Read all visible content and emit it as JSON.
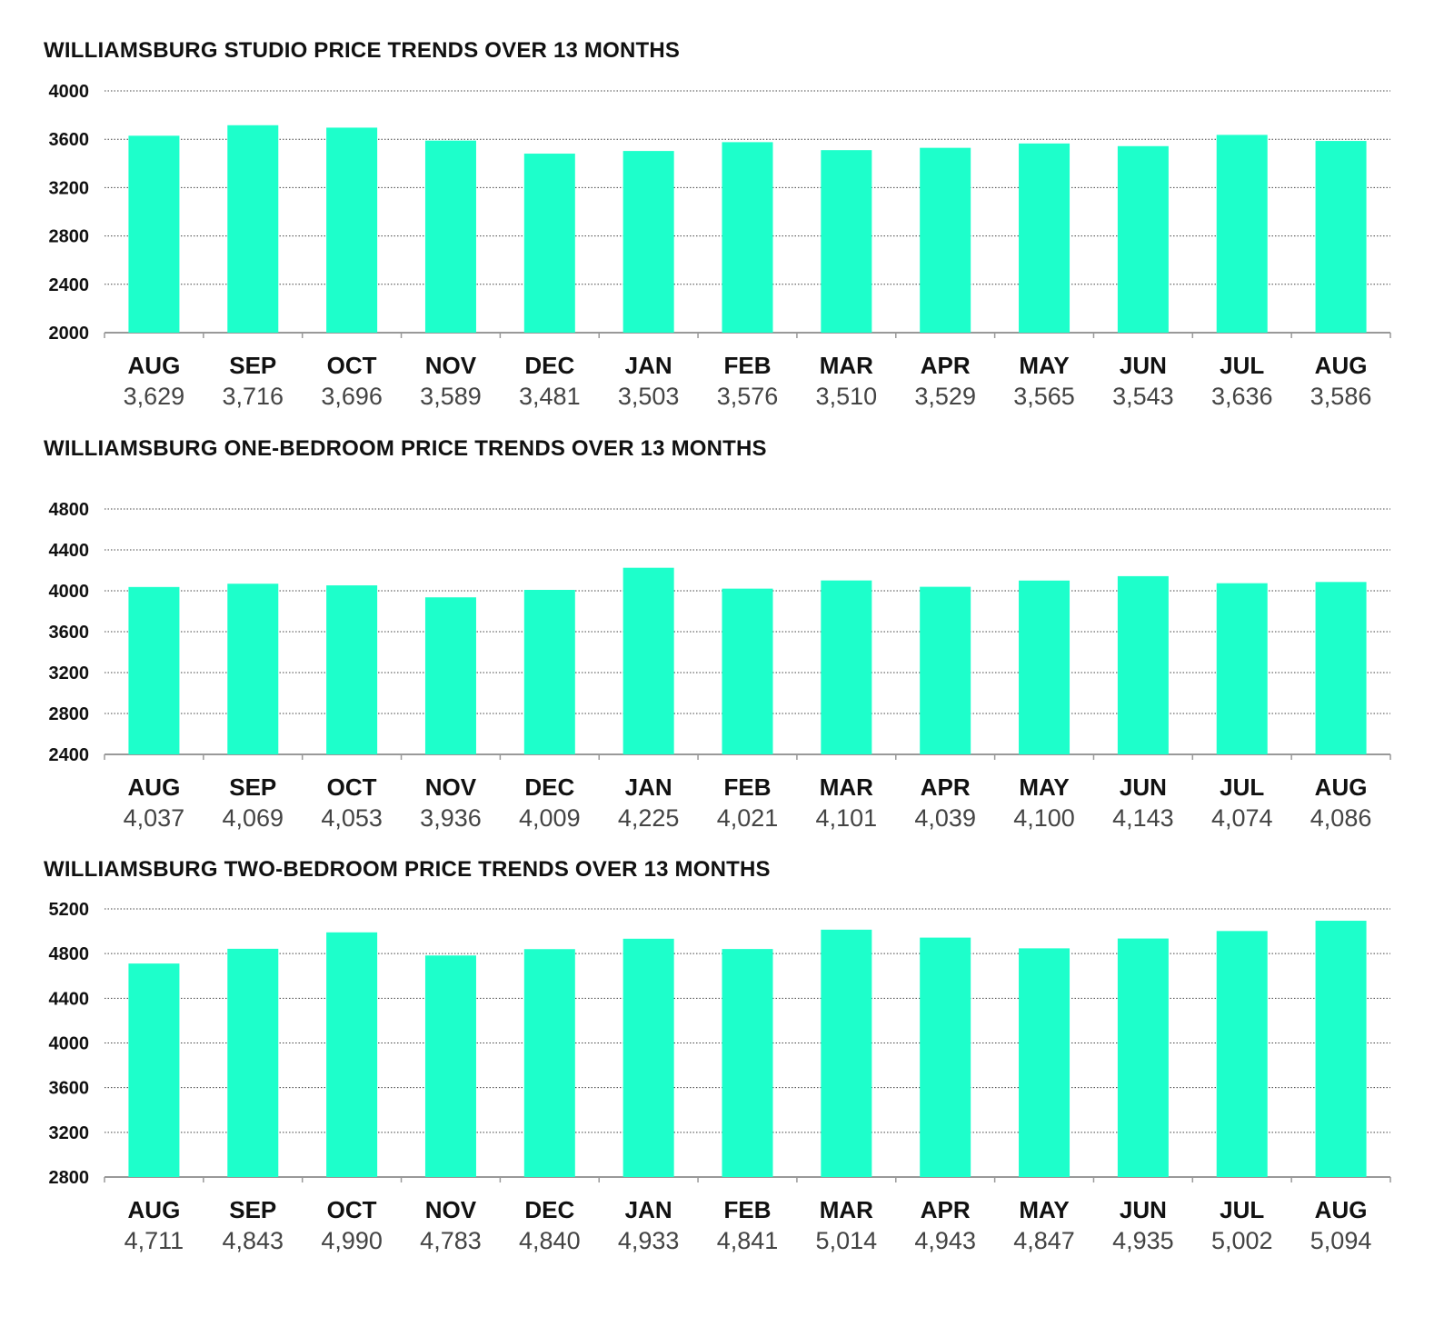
{
  "colors": {
    "bar": "#1dffcb",
    "grid": "#444444",
    "axis": "#999999"
  },
  "chart_data": [
    {
      "type": "bar",
      "title": "WILLIAMSBURG STUDIO PRICE TRENDS OVER 13 MONTHS",
      "categories": [
        "AUG",
        "SEP",
        "OCT",
        "NOV",
        "DEC",
        "JAN",
        "FEB",
        "MAR",
        "APR",
        "MAY",
        "JUN",
        "JUL",
        "AUG"
      ],
      "values": [
        3629,
        3716,
        3696,
        3589,
        3481,
        3503,
        3576,
        3510,
        3529,
        3565,
        3543,
        3636,
        3586
      ],
      "value_labels": [
        "3,629",
        "3,716",
        "3,696",
        "3,589",
        "3,481",
        "3,503",
        "3,576",
        "3,510",
        "3,529",
        "3,565",
        "3,543",
        "3,636",
        "3,586"
      ],
      "yticks": [
        "2000",
        "2400",
        "2800",
        "3200",
        "3600",
        "4000"
      ],
      "ylim": [
        2000,
        4000
      ],
      "grid": true
    },
    {
      "type": "bar",
      "title": "WILLIAMSBURG ONE-BEDROOM PRICE TRENDS OVER 13 MONTHS",
      "categories": [
        "AUG",
        "SEP",
        "OCT",
        "NOV",
        "DEC",
        "JAN",
        "FEB",
        "MAR",
        "APR",
        "MAY",
        "JUN",
        "JUL",
        "AUG"
      ],
      "values": [
        4037,
        4069,
        4053,
        3936,
        4009,
        4225,
        4021,
        4101,
        4039,
        4100,
        4143,
        4074,
        4086
      ],
      "value_labels": [
        "4,037",
        "4,069",
        "4,053",
        "3,936",
        "4,009",
        "4,225",
        "4,021",
        "4,101",
        "4,039",
        "4,100",
        "4,143",
        "4,074",
        "4,086"
      ],
      "yticks": [
        "2400",
        "2800",
        "3200",
        "3600",
        "4000",
        "4400",
        "4800"
      ],
      "ylim": [
        2400,
        5200
      ],
      "grid": true
    },
    {
      "type": "bar",
      "title": "WILLIAMSBURG TWO-BEDROOM PRICE TRENDS OVER 13 MONTHS",
      "categories": [
        "AUG",
        "SEP",
        "OCT",
        "NOV",
        "DEC",
        "JAN",
        "FEB",
        "MAR",
        "APR",
        "MAY",
        "JUN",
        "JUL",
        "AUG"
      ],
      "values": [
        4711,
        4843,
        4990,
        4783,
        4840,
        4933,
        4841,
        5014,
        4943,
        4847,
        4935,
        5002,
        5094
      ],
      "value_labels": [
        "4,711",
        "4,843",
        "4,990",
        "4,783",
        "4,840",
        "4,933",
        "4,841",
        "5,014",
        "4,943",
        "4,847",
        "4,935",
        "5,002",
        "5,094"
      ],
      "yticks": [
        "2800",
        "3200",
        "3600",
        "4000",
        "4400",
        "4800",
        "5200"
      ],
      "ylim": [
        2800,
        5200
      ],
      "grid": true
    }
  ]
}
